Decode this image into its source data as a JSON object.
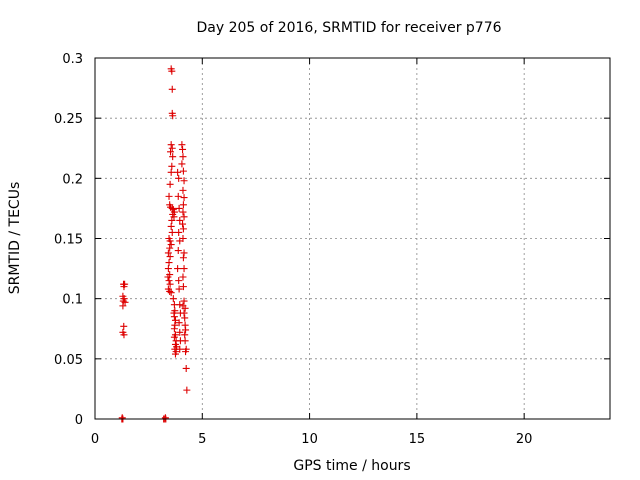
{
  "chart_data": {
    "type": "scatter",
    "title": "Day 205 of 2016, SRMTID for receiver p776",
    "xlabel": "GPS time / hours",
    "ylabel": "SRMTID / TECUs",
    "xlim": [
      0,
      24
    ],
    "ylim": [
      0,
      0.3
    ],
    "xticks": [
      0,
      5,
      10,
      15,
      20
    ],
    "xtick_labels": [
      "0",
      "5",
      "10",
      "15",
      "20"
    ],
    "yticks": [
      0,
      0.05,
      0.1,
      0.15,
      0.2,
      0.25,
      0.3
    ],
    "ytick_labels": [
      "0",
      "0.05",
      "0.1",
      "0.15",
      "0.2",
      "0.25",
      "0.3"
    ],
    "grid": true,
    "marker": "+",
    "color": "#dd0000",
    "series": [
      {
        "name": "SRMTID",
        "points": [
          [
            1.25,
            0.0
          ],
          [
            1.28,
            0.0
          ],
          [
            1.3,
            0.0
          ],
          [
            1.27,
            0.001
          ],
          [
            1.33,
            0.112
          ],
          [
            1.38,
            0.112
          ],
          [
            1.35,
            0.11
          ],
          [
            1.3,
            0.102
          ],
          [
            1.36,
            0.1
          ],
          [
            1.32,
            0.098
          ],
          [
            1.4,
            0.097
          ],
          [
            1.3,
            0.094
          ],
          [
            1.34,
            0.077
          ],
          [
            1.3,
            0.072
          ],
          [
            1.35,
            0.07
          ],
          [
            3.2,
            0.0
          ],
          [
            3.25,
            0.0
          ],
          [
            3.3,
            0.0
          ],
          [
            3.28,
            0.001
          ],
          [
            3.55,
            0.291
          ],
          [
            3.58,
            0.289
          ],
          [
            3.6,
            0.274
          ],
          [
            3.6,
            0.254
          ],
          [
            3.62,
            0.252
          ],
          [
            3.55,
            0.228
          ],
          [
            3.6,
            0.225
          ],
          [
            3.52,
            0.222
          ],
          [
            3.62,
            0.218
          ],
          [
            3.58,
            0.21
          ],
          [
            3.55,
            0.205
          ],
          [
            3.5,
            0.195
          ],
          [
            3.45,
            0.185
          ],
          [
            3.48,
            0.178
          ],
          [
            3.52,
            0.176
          ],
          [
            3.6,
            0.175
          ],
          [
            3.65,
            0.174
          ],
          [
            3.7,
            0.172
          ],
          [
            3.62,
            0.17
          ],
          [
            3.68,
            0.168
          ],
          [
            3.58,
            0.165
          ],
          [
            3.55,
            0.16
          ],
          [
            3.6,
            0.155
          ],
          [
            3.45,
            0.15
          ],
          [
            3.5,
            0.148
          ],
          [
            3.55,
            0.145
          ],
          [
            3.48,
            0.142
          ],
          [
            3.42,
            0.138
          ],
          [
            3.5,
            0.135
          ],
          [
            3.45,
            0.13
          ],
          [
            3.42,
            0.125
          ],
          [
            3.48,
            0.12
          ],
          [
            3.4,
            0.118
          ],
          [
            3.45,
            0.115
          ],
          [
            3.5,
            0.112
          ],
          [
            3.42,
            0.108
          ],
          [
            3.48,
            0.106
          ],
          [
            3.55,
            0.105
          ],
          [
            3.65,
            0.1
          ],
          [
            3.7,
            0.095
          ],
          [
            3.72,
            0.09
          ],
          [
            3.68,
            0.088
          ],
          [
            3.7,
            0.085
          ],
          [
            3.75,
            0.082
          ],
          [
            3.72,
            0.078
          ],
          [
            3.7,
            0.075
          ],
          [
            3.75,
            0.07
          ],
          [
            3.7,
            0.068
          ],
          [
            3.78,
            0.065
          ],
          [
            3.75,
            0.062
          ],
          [
            3.8,
            0.06
          ],
          [
            3.72,
            0.058
          ],
          [
            3.78,
            0.056
          ],
          [
            3.75,
            0.054
          ],
          [
            3.85,
            0.205
          ],
          [
            3.9,
            0.2
          ],
          [
            3.88,
            0.185
          ],
          [
            3.92,
            0.175
          ],
          [
            3.95,
            0.165
          ],
          [
            3.9,
            0.155
          ],
          [
            3.95,
            0.148
          ],
          [
            3.88,
            0.14
          ],
          [
            3.85,
            0.125
          ],
          [
            3.9,
            0.115
          ],
          [
            3.92,
            0.108
          ],
          [
            3.95,
            0.095
          ],
          [
            3.98,
            0.088
          ],
          [
            3.92,
            0.08
          ],
          [
            3.95,
            0.072
          ],
          [
            3.98,
            0.065
          ],
          [
            3.95,
            0.058
          ],
          [
            4.05,
            0.228
          ],
          [
            4.08,
            0.224
          ],
          [
            4.1,
            0.218
          ],
          [
            4.05,
            0.212
          ],
          [
            4.12,
            0.206
          ],
          [
            4.15,
            0.198
          ],
          [
            4.1,
            0.19
          ],
          [
            4.15,
            0.184
          ],
          [
            4.12,
            0.178
          ],
          [
            4.1,
            0.172
          ],
          [
            4.15,
            0.168
          ],
          [
            4.08,
            0.162
          ],
          [
            4.12,
            0.158
          ],
          [
            4.1,
            0.15
          ],
          [
            4.15,
            0.138
          ],
          [
            4.12,
            0.134
          ],
          [
            4.15,
            0.125
          ],
          [
            4.1,
            0.118
          ],
          [
            4.12,
            0.11
          ],
          [
            4.15,
            0.098
          ],
          [
            4.1,
            0.094
          ],
          [
            4.2,
            0.092
          ],
          [
            4.15,
            0.088
          ],
          [
            4.18,
            0.084
          ],
          [
            4.2,
            0.078
          ],
          [
            4.22,
            0.074
          ],
          [
            4.18,
            0.07
          ],
          [
            4.2,
            0.065
          ],
          [
            4.25,
            0.058
          ],
          [
            4.22,
            0.056
          ],
          [
            4.25,
            0.042
          ],
          [
            4.28,
            0.024
          ]
        ]
      }
    ]
  }
}
